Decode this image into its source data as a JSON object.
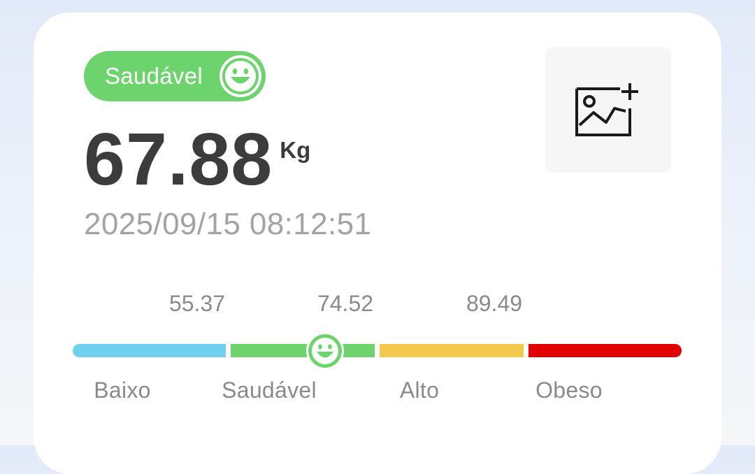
{
  "status": {
    "label": "Saudável",
    "icon": "smiley-face-icon",
    "color": "#6dd36c"
  },
  "weight": {
    "value": "67.88",
    "unit": "Kg"
  },
  "timestamp": "2025/09/15 08:12:51",
  "add_image_button": {
    "icon": "add-image-icon"
  },
  "scale": {
    "thresholds": [
      "55.37",
      "74.52",
      "89.49"
    ],
    "categories": [
      {
        "label": "Baixo",
        "color": "#6fd0ef"
      },
      {
        "label": "Saudável",
        "color": "#6dd36c"
      },
      {
        "label": "Alto",
        "color": "#f4c84c"
      },
      {
        "label": "Obeso",
        "color": "#e10000"
      }
    ],
    "marker_icon": "smiley-face-icon"
  }
}
